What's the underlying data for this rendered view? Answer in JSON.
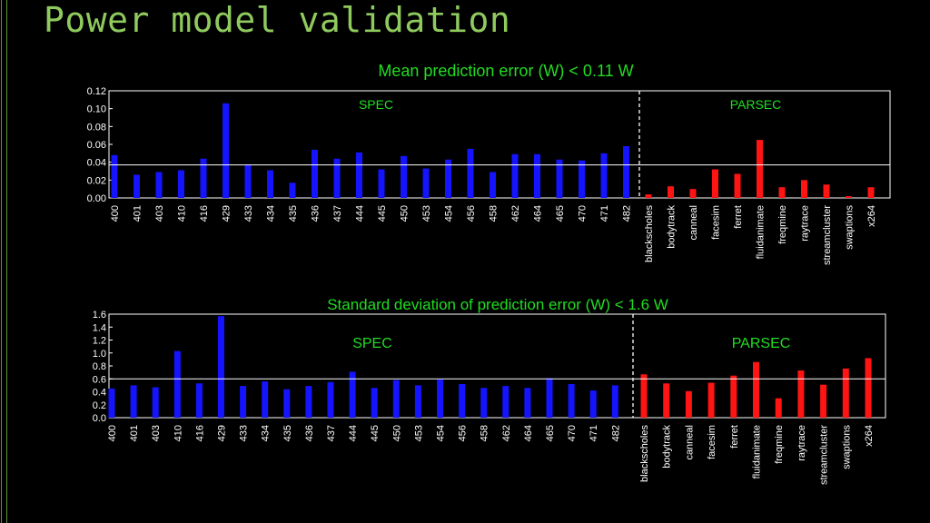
{
  "slide": {
    "title": "Power model validation"
  },
  "colors": {
    "spec": "#1414ff",
    "parsec": "#ff1414",
    "label": "#22dd22",
    "axis": "#ffffff",
    "bg": "#000000"
  },
  "chart_data": [
    {
      "type": "bar",
      "title": "Mean prediction error (W) < 0.11 W",
      "groups": [
        "SPEC",
        "PARSEC"
      ],
      "ylim": [
        0,
        0.12
      ],
      "yticks": [
        "0.00",
        "0.02",
        "0.04",
        "0.06",
        "0.08",
        "0.10",
        "0.12"
      ],
      "reference_line": 0.037,
      "series": [
        {
          "name": "SPEC",
          "categories": [
            "400",
            "401",
            "403",
            "410",
            "416",
            "429",
            "433",
            "434",
            "435",
            "436",
            "437",
            "444",
            "445",
            "450",
            "453",
            "454",
            "456",
            "458",
            "462",
            "464",
            "465",
            "470",
            "471",
            "482"
          ],
          "values": [
            0.048,
            0.026,
            0.029,
            0.031,
            0.044,
            0.106,
            0.037,
            0.031,
            0.017,
            0.054,
            0.044,
            0.051,
            0.032,
            0.047,
            0.033,
            0.043,
            0.055,
            0.029,
            0.049,
            0.049,
            0.043,
            0.042,
            0.05,
            0.058
          ]
        },
        {
          "name": "PARSEC",
          "categories": [
            "blackscholes",
            "bodytrack",
            "canneal",
            "facesim",
            "ferret",
            "fluidanimate",
            "freqmine",
            "raytrace",
            "streamcluster",
            "swaptions",
            "x264"
          ],
          "values": [
            0.004,
            0.013,
            0.01,
            0.032,
            0.027,
            0.065,
            0.012,
            0.02,
            0.015,
            0.002,
            0.012
          ]
        }
      ]
    },
    {
      "type": "bar",
      "title": "Standard deviation of prediction error (W) < 1.6 W",
      "groups": [
        "SPEC",
        "PARSEC"
      ],
      "ylim": [
        0,
        1.6
      ],
      "yticks": [
        "0.0",
        "0.2",
        "0.4",
        "0.6",
        "0.8",
        "1.0",
        "1.2",
        "1.4",
        "1.6"
      ],
      "reference_line": 0.6,
      "series": [
        {
          "name": "SPEC",
          "categories": [
            "400",
            "401",
            "403",
            "410",
            "416",
            "429",
            "433",
            "434",
            "435",
            "436",
            "437",
            "444",
            "445",
            "450",
            "453",
            "454",
            "456",
            "458",
            "462",
            "464",
            "465",
            "470",
            "471",
            "482"
          ],
          "values": [
            0.45,
            0.5,
            0.47,
            1.03,
            0.53,
            1.57,
            0.49,
            0.56,
            0.44,
            0.49,
            0.55,
            0.71,
            0.46,
            0.58,
            0.5,
            0.59,
            0.52,
            0.46,
            0.49,
            0.46,
            0.61,
            0.52,
            0.42,
            0.5
          ]
        },
        {
          "name": "PARSEC",
          "categories": [
            "blackscholes",
            "bodytrack",
            "canneal",
            "facesim",
            "ferret",
            "fluidanimate",
            "freqmine",
            "raytrace",
            "streamcluster",
            "swaptions",
            "x264"
          ],
          "values": [
            0.67,
            0.53,
            0.41,
            0.54,
            0.65,
            0.86,
            0.3,
            0.73,
            0.51,
            0.76,
            0.92
          ]
        }
      ]
    }
  ]
}
